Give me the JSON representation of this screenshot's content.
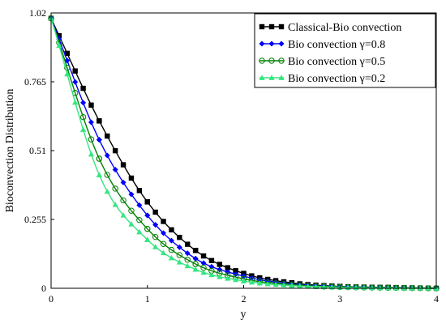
{
  "chart_data": {
    "type": "line",
    "title": "",
    "xlabel": "y",
    "ylabel": "Bioconvection Distribution",
    "xlim": [
      0,
      4
    ],
    "ylim": [
      0,
      1.02
    ],
    "xticks": [
      "0",
      "1",
      "2",
      "3",
      "4"
    ],
    "yticks": [
      "0",
      "0.255",
      "0.51",
      "0.765",
      "1.02"
    ],
    "xtick_values": [
      0,
      1,
      2,
      3,
      4
    ],
    "ytick_values": [
      0,
      0.255,
      0.51,
      0.765,
      1.02
    ],
    "grid": false,
    "legend_position": "top-right",
    "x": [
      0,
      0.5,
      1,
      1.5,
      2,
      2.5,
      3,
      3.5,
      4
    ],
    "series": [
      {
        "name": "Classical-Bio convection",
        "color": "#000000",
        "marker": "square",
        "values": [
          1.0,
          0.62,
          0.32,
          0.14,
          0.055,
          0.02,
          0.007,
          0.003,
          0.0
        ]
      },
      {
        "name": "Bio convection γ=0.8",
        "color": "#0000ff",
        "marker": "diamond",
        "values": [
          1.0,
          0.55,
          0.27,
          0.11,
          0.045,
          0.016,
          0.006,
          0.002,
          0.0
        ]
      },
      {
        "name": "Bio convection γ=0.5",
        "color": "#008000",
        "marker": "circle-open",
        "values": [
          1.0,
          0.48,
          0.22,
          0.09,
          0.035,
          0.013,
          0.005,
          0.002,
          0.0
        ]
      },
      {
        "name": "Bio convection γ=0.2",
        "color": "#33e680",
        "marker": "triangle",
        "values": [
          1.0,
          0.42,
          0.18,
          0.07,
          0.027,
          0.01,
          0.004,
          0.001,
          0.0
        ]
      }
    ]
  }
}
